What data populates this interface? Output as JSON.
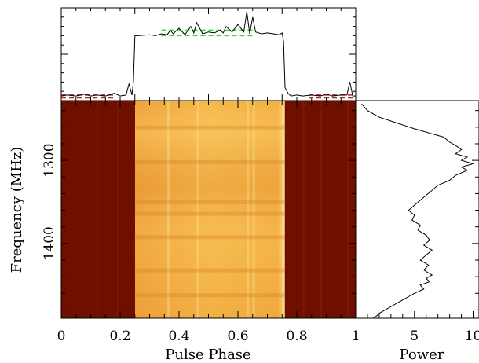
{
  "chart_data": [
    {
      "id": "pulse_profile",
      "type": "line",
      "title": "",
      "xlabel": "",
      "ylabel": "",
      "xlim": [
        0,
        1
      ],
      "ylim": [
        0,
        1
      ],
      "series": [
        {
          "color": "#000000",
          "x": [
            0.0,
            0.02,
            0.05,
            0.08,
            0.1,
            0.12,
            0.15,
            0.18,
            0.2,
            0.22,
            0.23,
            0.24,
            0.245,
            0.25,
            0.26,
            0.3,
            0.32,
            0.34,
            0.36,
            0.37,
            0.38,
            0.4,
            0.42,
            0.44,
            0.45,
            0.46,
            0.48,
            0.5,
            0.52,
            0.54,
            0.55,
            0.56,
            0.58,
            0.6,
            0.62,
            0.63,
            0.64,
            0.65,
            0.66,
            0.68,
            0.7,
            0.72,
            0.74,
            0.75,
            0.755,
            0.76,
            0.77,
            0.78,
            0.8,
            0.82,
            0.85,
            0.88,
            0.9,
            0.92,
            0.95,
            0.97,
            0.98,
            0.99,
            1.0
          ],
          "y": [
            0.05,
            0.06,
            0.05,
            0.07,
            0.05,
            0.06,
            0.05,
            0.08,
            0.05,
            0.06,
            0.18,
            0.06,
            0.2,
            0.7,
            0.7,
            0.71,
            0.7,
            0.72,
            0.71,
            0.76,
            0.72,
            0.78,
            0.71,
            0.8,
            0.73,
            0.84,
            0.72,
            0.74,
            0.73,
            0.76,
            0.73,
            0.8,
            0.74,
            0.82,
            0.74,
            0.96,
            0.72,
            0.9,
            0.74,
            0.72,
            0.73,
            0.72,
            0.71,
            0.73,
            0.64,
            0.14,
            0.08,
            0.05,
            0.06,
            0.05,
            0.06,
            0.05,
            0.07,
            0.05,
            0.06,
            0.06,
            0.2,
            0.05,
            0.05
          ]
        }
      ],
      "annotations": [
        {
          "color": "#b02020",
          "style": "dashed",
          "x": [
            0.0,
            0.18
          ],
          "y": 0.06
        },
        {
          "color": "#b02020",
          "style": "dashed",
          "x": [
            0.0,
            0.18
          ],
          "y": 0.03
        },
        {
          "color": "#b02020",
          "style": "dashed",
          "x": [
            0.84,
            1.0
          ],
          "y": 0.06
        },
        {
          "color": "#b02020",
          "style": "dashed",
          "x": [
            0.84,
            1.0
          ],
          "y": 0.03
        },
        {
          "color": "#30dd30",
          "style": "dashed",
          "x": [
            0.34,
            0.66
          ],
          "y": 0.76
        },
        {
          "color": "#30dd30",
          "style": "dashed",
          "x": [
            0.34,
            0.66
          ],
          "y": 0.7
        }
      ]
    },
    {
      "id": "dynamic_spectrum",
      "type": "heatmap",
      "xlabel": "Pulse Phase",
      "ylabel": "Frequency (MHz)",
      "xlim": [
        0,
        1
      ],
      "ylim": [
        1490,
        1228
      ],
      "x_ticks": [
        0,
        0.2,
        0.4,
        0.6,
        0.8,
        1
      ],
      "x_tick_labels": [
        "0",
        "0.2",
        "0.4",
        "0.6",
        "0.8",
        "1"
      ],
      "y_ticks": [
        1300,
        1400
      ],
      "y_tick_labels": [
        "1300",
        "1400"
      ],
      "on_pulse_phase": [
        0.25,
        0.76
      ],
      "colors": {
        "off_pulse": "#6e0f00",
        "on_pulse": "#f6b84a",
        "highlight": "#fde79a"
      }
    },
    {
      "id": "spectrum",
      "type": "line",
      "xlabel": "Power",
      "ylabel": "",
      "xlim": [
        0,
        10.5
      ],
      "ylim": [
        1490,
        1228
      ],
      "x_ticks": [
        5,
        10
      ],
      "x_tick_labels": [
        "5",
        "10"
      ],
      "series": [
        {
          "color": "#000000",
          "x": [
            0.5,
            1.0,
            2.0,
            3.5,
            5.0,
            6.5,
            7.5,
            8.0,
            8.5,
            9.0,
            8.5,
            9.5,
            9.0,
            10.0,
            9.0,
            9.5,
            8.5,
            8.0,
            7.0,
            6.5,
            6.0,
            5.5,
            5.0,
            4.5,
            5.0,
            4.8,
            5.5,
            5.3,
            6.0,
            6.3,
            5.8,
            6.5,
            6.0,
            5.5,
            6.2,
            5.8,
            6.5,
            6.0,
            6.3,
            5.5,
            5.8,
            5.0,
            4.5,
            4.0,
            3.5,
            3.0,
            2.5,
            2.0,
            1.8,
            1.5
          ],
          "y": [
            1232,
            1240,
            1248,
            1255,
            1262,
            1268,
            1272,
            1278,
            1282,
            1287,
            1292,
            1296,
            1300,
            1304,
            1308,
            1312,
            1318,
            1324,
            1330,
            1336,
            1342,
            1348,
            1354,
            1360,
            1366,
            1372,
            1378,
            1384,
            1390,
            1396,
            1402,
            1408,
            1414,
            1420,
            1426,
            1432,
            1438,
            1442,
            1446,
            1450,
            1455,
            1460,
            1464,
            1468,
            1472,
            1476,
            1480,
            1484,
            1487,
            1490
          ]
        }
      ]
    }
  ]
}
